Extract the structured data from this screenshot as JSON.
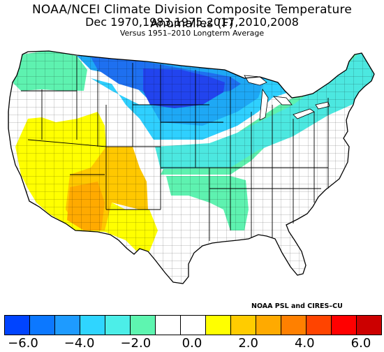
{
  "title": {
    "line1": "NOAA/NCEI Climate Division Composite Temperature Anomalies (F)",
    "line2": "Dec   1970,1983,1975,2017,2010,2008",
    "line3": "Versus 1951–2010 Longterm Average"
  },
  "credit": "NOAA PSL and CIRES–CU",
  "colorbar": {
    "colors": [
      "#0044ff",
      "#0c78ff",
      "#1e9bff",
      "#2fd5ff",
      "#4ceee8",
      "#5ef5b0",
      "#ffffff",
      "#ffffff",
      "#ffff00",
      "#ffcc00",
      "#ffaa00",
      "#ff8000",
      "#ff4400",
      "#ff0000",
      "#cc0000"
    ],
    "tick_labels": [
      "−6.0",
      "−4.0",
      "−2.0",
      "0.0",
      "2.0",
      "4.0",
      "6.0"
    ]
  },
  "legend_colors": {
    "deep_blue": "#2244ee",
    "blue": "#1e70f0",
    "sky": "#1ea8f5",
    "cyan": "#2fd0ff",
    "aqua": "#4ce8e0",
    "mint": "#5ef2b0",
    "white": "#ffffff",
    "yellow": "#ffff00",
    "amber": "#ffc800",
    "orange": "#ffaa00"
  }
}
